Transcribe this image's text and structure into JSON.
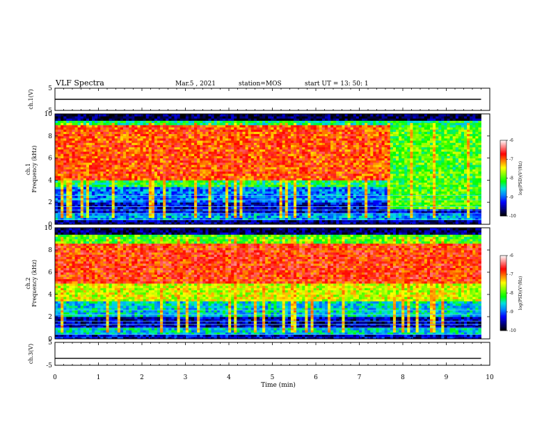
{
  "header": {
    "title": "VLF Spectra",
    "date": "Mar.5  , 2021",
    "station": "station=MOS",
    "start": "start  UT  =   13: 50: 1"
  },
  "colorbar": {
    "label": "log(PSD)(V²/Hz)",
    "ticks": [
      "-6",
      "-7",
      "-8",
      "-9",
      "-10"
    ],
    "colors": [
      "#ffffff",
      "#ff8080",
      "#ff0000",
      "#ff8000",
      "#ffff00",
      "#80ff00",
      "#00ff00",
      "#00e0e0",
      "#0080ff",
      "#0000ff",
      "#000080",
      "#000000"
    ]
  },
  "chart_data": [
    {
      "type": "line",
      "name": "ch1-waveform",
      "ylabel": "ch.1(V)",
      "ylim": [
        -5,
        5
      ],
      "yticks": [
        "5",
        "-5"
      ],
      "xlim": [
        0,
        10
      ],
      "x": [
        0,
        9.8
      ],
      "y": [
        0,
        0
      ]
    },
    {
      "type": "heatmap",
      "name": "ch1-spectrogram",
      "ylabel": "ch.1\nFrequency (kHz)",
      "ylim": [
        0,
        10
      ],
      "yticks": [
        "0",
        "2",
        "4",
        "6",
        "8",
        "10"
      ],
      "xlim": [
        0,
        10
      ],
      "x_data_end": 9.8,
      "zlabel": "log(PSD)(V²/Hz)",
      "zlim": [
        -10,
        -6
      ],
      "bands": [
        {
          "f": [
            0,
            0.5
          ],
          "level": -9.6
        },
        {
          "f": [
            0.5,
            1.0
          ],
          "level": -8.8
        },
        {
          "f": [
            1.0,
            2.0
          ],
          "level": -9.4
        },
        {
          "f": [
            2.0,
            3.5
          ],
          "level": -8.9
        },
        {
          "f": [
            3.5,
            5.5
          ],
          "level": -8.2
        },
        {
          "f": [
            5.5,
            8.8
          ],
          "level": -7.0
        },
        {
          "f": [
            8.8,
            9.5
          ],
          "level": -8.3
        },
        {
          "f": [
            9.5,
            10
          ],
          "level": -9.8
        }
      ],
      "intense_region": {
        "t": [
          0,
          7.7
        ],
        "f": [
          4,
          9
        ],
        "level": -6.9
      },
      "late_region": {
        "t": [
          7.7,
          9.8
        ],
        "f": [
          1.5,
          5
        ],
        "level": -8.0
      }
    },
    {
      "type": "heatmap",
      "name": "ch2-spectrogram",
      "ylabel": "ch.2\nFrequency (kHz)",
      "ylim": [
        0,
        10
      ],
      "yticks": [
        "0",
        "2",
        "4",
        "6",
        "8",
        "10"
      ],
      "xlim": [
        0,
        10
      ],
      "x_data_end": 9.8,
      "zlabel": "log(PSD)(V²/Hz)",
      "zlim": [
        -10,
        -6
      ],
      "bands": [
        {
          "f": [
            0,
            0.5
          ],
          "level": -9.4
        },
        {
          "f": [
            0.5,
            1.0
          ],
          "level": -8.6
        },
        {
          "f": [
            1.0,
            2.0
          ],
          "level": -9.5
        },
        {
          "f": [
            2.0,
            3.5
          ],
          "level": -8.6
        },
        {
          "f": [
            3.5,
            5.0
          ],
          "level": -7.6
        },
        {
          "f": [
            5.0,
            8.5
          ],
          "level": -6.8
        },
        {
          "f": [
            8.5,
            9.5
          ],
          "level": -8.0
        },
        {
          "f": [
            9.5,
            10
          ],
          "level": -9.7
        }
      ],
      "intense_region": {
        "t": [
          0,
          9.8
        ],
        "f": [
          5,
          8.5
        ],
        "level": -6.8
      }
    },
    {
      "type": "line",
      "name": "ch3-waveform",
      "ylabel": "ch.3(V)",
      "ylim": [
        -5,
        5
      ],
      "yticks": [
        "5",
        "-5"
      ],
      "xlim": [
        0,
        10
      ],
      "x": [
        0,
        9.8
      ],
      "y": [
        -2,
        -2
      ]
    }
  ],
  "xaxis": {
    "label": "Time  (min)",
    "ticks": [
      "0",
      "1",
      "2",
      "3",
      "4",
      "5",
      "6",
      "7",
      "8",
      "9",
      "10"
    ]
  }
}
